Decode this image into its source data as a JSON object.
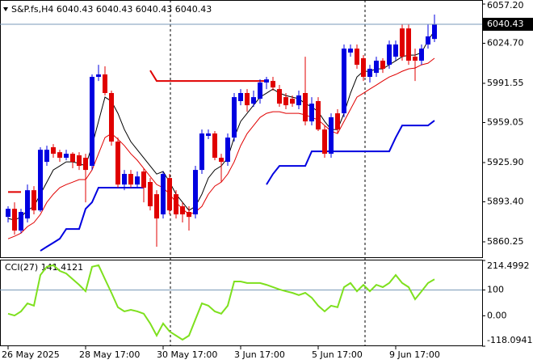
{
  "chart_data": [
    {
      "type": "candlestick",
      "title": "S&P.fs,H4  6040.43 6040.43 6040.43 6040.43",
      "categories": [
        "26 May 2025",
        null,
        null,
        null,
        null,
        null,
        null,
        null,
        null,
        null,
        null,
        null,
        "28 May 17:00",
        null,
        null,
        null,
        null,
        null,
        null,
        null,
        null,
        null,
        null,
        null,
        "30 May 17:00",
        null,
        null,
        null,
        null,
        null,
        null,
        null,
        null,
        null,
        null,
        null,
        "3 Jun 17:00",
        null,
        null,
        null,
        null,
        null,
        null,
        null,
        null,
        null,
        null,
        null,
        "5 Jun 17:00",
        null,
        null,
        null,
        null,
        null,
        null,
        null,
        null,
        null,
        null,
        null,
        "9 Jun 17:00",
        null,
        null,
        null,
        null,
        null,
        null
      ],
      "open": [
        5880.9,
        5887.6,
        5869.6,
        5879.6,
        5903.0,
        5886.3,
        5926.5,
        5938.6,
        5934.5,
        5929.9,
        5933.2,
        5931.9,
        5929.9,
        5923.2,
        5996.9,
        5998.9,
        5983.5,
        5943.3,
        5907.7,
        5916.5,
        5907.7,
        5918.5,
        5909.8,
        5899.7,
        5883.0,
        5913.1,
        5899.7,
        5889.7,
        5885.0,
        5883.0,
        5919.8,
        5948.0,
        5950.0,
        5929.9,
        5926.5,
        5946.6,
        5976.8,
        5983.5,
        5974.7,
        5978.8,
        5992.2,
        5993.5,
        5986.8,
        5980.1,
        5978.8,
        5973.4,
        5983.5,
        5960.0,
        5976.8,
        5953.3,
        5933.2,
        5966.7,
        5966.7,
        6017.0,
        6020.3,
        6012.3,
        5996.9,
        6000.2,
        6010.3,
        6006.9,
        6013.6,
        6037.0,
        6037.0,
        6013.6,
        6010.3,
        6023.7,
        6028.3
      ],
      "high": [
        5889.7,
        5893.0,
        5887.6,
        5907.7,
        5906.4,
        5938.6,
        5939.9,
        5941.2,
        5936.5,
        5936.5,
        5934.5,
        5934.5,
        5933.2,
        5998.9,
        6006.9,
        6005.6,
        5985.5,
        5946.6,
        5919.8,
        5919.8,
        5918.5,
        5921.2,
        5913.1,
        5903.0,
        5918.5,
        5916.5,
        5903.0,
        5893.0,
        5889.7,
        5923.2,
        5953.3,
        5953.3,
        5952.0,
        5933.2,
        5950.0,
        5983.5,
        5986.8,
        5986.8,
        5985.5,
        5994.8,
        5996.9,
        5996.9,
        5990.2,
        5983.5,
        5981.5,
        5985.5,
        6013.6,
        5980.1,
        5980.1,
        5956.7,
        5966.7,
        5970.1,
        6023.7,
        6023.7,
        6023.7,
        6015.0,
        6006.9,
        6013.6,
        6012.3,
        6027.0,
        6027.0,
        6040.4,
        6040.4,
        6020.3,
        6023.7,
        6040.4,
        6048.5
      ],
      "low": [
        5876.3,
        5866.2,
        5867.5,
        5876.3,
        5883.0,
        5885.0,
        5923.2,
        5929.9,
        5926.5,
        5927.8,
        5921.2,
        5919.8,
        5893.0,
        5919.8,
        5993.5,
        5981.5,
        5939.9,
        5905.1,
        5903.0,
        5905.1,
        5905.1,
        5893.0,
        5886.3,
        5856.2,
        5879.6,
        5883.0,
        5879.6,
        5876.3,
        5869.6,
        5879.6,
        5916.5,
        5945.3,
        5927.8,
        5909.8,
        5923.2,
        5943.3,
        5973.4,
        5968.0,
        5972.1,
        5974.7,
        5986.8,
        5985.5,
        5972.1,
        5970.1,
        5972.1,
        5970.1,
        5956.7,
        5956.7,
        5952.0,
        5929.9,
        5929.9,
        5950.0,
        5963.4,
        6013.6,
        6003.6,
        5993.5,
        5992.2,
        5996.9,
        6000.2,
        6003.6,
        6010.3,
        6010.3,
        6006.9,
        5993.5,
        6006.9,
        6020.3,
        6025.7
      ],
      "close": [
        5887.6,
        5869.6,
        5885.0,
        5903.0,
        5886.3,
        5936.5,
        5936.5,
        5933.2,
        5929.9,
        5933.2,
        5926.5,
        5923.2,
        5919.8,
        5996.9,
        5998.9,
        5983.5,
        5943.3,
        5907.7,
        5916.5,
        5907.7,
        5914.4,
        5905.1,
        5889.7,
        5879.6,
        5916.5,
        5886.3,
        5883.0,
        5883.0,
        5880.9,
        5919.8,
        5950.0,
        5950.0,
        5929.9,
        5926.5,
        5946.6,
        5980.1,
        5983.5,
        5973.4,
        5980.1,
        5992.2,
        5994.8,
        5988.1,
        5974.7,
        5973.4,
        5974.7,
        5981.5,
        5960.0,
        5974.7,
        5953.3,
        5933.2,
        5963.4,
        5953.3,
        6020.3,
        6020.3,
        6006.9,
        5996.9,
        6003.6,
        6010.3,
        6003.6,
        6023.7,
        6023.7,
        6013.6,
        6010.3,
        6010.3,
        6020.3,
        6030.4,
        6040.43
      ],
      "up_color": "#0000e0",
      "down_color": "#e00000",
      "series": [
        {
          "color": "#000000",
          "values": [
            5879.6,
            5878.3,
            5880.9,
            5886.3,
            5889.6,
            5899.7,
            5909.7,
            5919.8,
            5923.1,
            5926.5,
            5926.5,
            5925.2,
            5923.1,
            5939.9,
            5960.0,
            5980.1,
            5976.7,
            5966.7,
            5953.3,
            5943.2,
            5936.5,
            5929.8,
            5923.1,
            5916.4,
            5918.5,
            5909.7,
            5899.7,
            5893.0,
            5886.3,
            5889.6,
            5899.7,
            5913.1,
            5919.8,
            5923.1,
            5929.8,
            5946.6,
            5960.0,
            5966.7,
            5973.4,
            5980.1,
            5983.4,
            5986.8,
            5983.4,
            5981.4,
            5980.1,
            5978.8,
            5974.7,
            5972.1,
            5968.0,
            5960.0,
            5953.3,
            5953.3,
            5966.7,
            5983.4,
            5996.8,
            6001.5,
            6001.5,
            6003.5,
            6003.5,
            6006.9,
            6010.2,
            6013.6,
            6014.9,
            6014.9,
            6016.9,
            6027.0,
            6035.0
          ]
        },
        {
          "color": "#e00000",
          "values": [
            5862.8,
            5864.9,
            5867.5,
            5872.9,
            5876.2,
            5882.9,
            5893.0,
            5899.7,
            5905.1,
            5907.7,
            5909.7,
            5911.8,
            5911.8,
            5919.8,
            5933.2,
            5946.6,
            5949.9,
            5945.3,
            5939.9,
            5933.2,
            5927.8,
            5921.1,
            5914.4,
            5907.7,
            5905.1,
            5899.7,
            5893.0,
            5887.6,
            5882.9,
            5885.0,
            5889.6,
            5899.7,
            5906.4,
            5909.7,
            5916.4,
            5926.5,
            5939.9,
            5949.9,
            5956.6,
            5963.3,
            5966.7,
            5968.0,
            5968.0,
            5966.7,
            5966.7,
            5966.7,
            5965.4,
            5963.3,
            5961.3,
            5956.6,
            5952.0,
            5949.9,
            5960.0,
            5970.0,
            5980.1,
            5983.4,
            5986.8,
            5990.1,
            5993.5,
            5996.8,
            5998.9,
            6001.5,
            6003.5,
            6004.2,
            6006.9,
            6008.2,
            6012.3
          ]
        },
        {
          "color": "#e00000",
          "width": 2,
          "values": [
            5901.5,
            5901.5,
            5901.5,
            null,
            null,
            null,
            null,
            null,
            null,
            null,
            null,
            null,
            null,
            null,
            null,
            null,
            null,
            null,
            null,
            null,
            null,
            null,
            6002.2,
            5993.5,
            5993.5,
            5993.5,
            5993.5,
            5993.5,
            5993.5,
            5993.5,
            5993.5,
            5993.5,
            5993.5,
            5993.5,
            5993.5,
            5993.5,
            5993.5,
            5993.5,
            5993.5,
            5993.5,
            5993.5,
            null,
            null,
            null,
            null,
            null,
            null,
            null,
            null,
            null,
            null,
            null,
            null,
            null,
            null,
            null,
            null,
            null,
            null,
            null,
            null,
            null,
            null,
            null,
            null,
            null,
            null
          ]
        },
        {
          "color": "#0000e0",
          "width": 2,
          "values": [
            null,
            null,
            null,
            null,
            null,
            5852.8,
            5856.2,
            5859.5,
            5862.8,
            5870.9,
            5870.9,
            5870.9,
            5887.6,
            5893.0,
            5905.1,
            5905.1,
            5905.1,
            5905.1,
            5905.1,
            5905.1,
            5905.1,
            5905.1,
            null,
            null,
            null,
            null,
            null,
            null,
            null,
            null,
            null,
            null,
            null,
            null,
            null,
            null,
            null,
            null,
            null,
            null,
            5907.7,
            5916.4,
            5923.1,
            5923.1,
            5923.1,
            5923.1,
            5923.1,
            5935.2,
            5935.2,
            5935.2,
            5935.2,
            5935.2,
            5935.2,
            5935.2,
            5935.2,
            5935.2,
            5935.2,
            5935.2,
            5935.2,
            5935.2,
            5946.6,
            5956.6,
            5956.6,
            5956.6,
            5956.6,
            5956.6,
            5960.7
          ]
        }
      ],
      "last_price": 6040.43,
      "ylim": [
        5847.5,
        6060.55
      ],
      "yticks": [
        {
          "value": 6057.2,
          "label": "6057.20"
        },
        {
          "value": 6024.7,
          "label": "6024.70"
        },
        5991.55,
        5959.05,
        {
          "value": 5925.9,
          "label": "5925.90"
        },
        {
          "value": 5893.4,
          "label": "5893.40"
        },
        5860.25
      ]
    },
    {
      "type": "line",
      "title": "CCI(27) 141.4121",
      "color": "#7ee01e",
      "values": [
        8,
        1,
        17,
        48,
        39,
        158,
        190,
        196,
        174,
        164,
        142,
        120,
        95,
        190,
        196,
        142,
        89,
        33,
        17,
        23,
        17,
        8,
        -30,
        -77,
        -30,
        -61,
        -77,
        -93,
        -77,
        -14,
        48,
        39,
        17,
        8,
        39,
        133,
        133,
        127,
        127,
        127,
        120,
        111,
        102,
        95,
        89,
        80,
        89,
        70,
        39,
        17,
        39,
        33,
        111,
        127,
        95,
        120,
        95,
        120,
        111,
        127,
        158,
        127,
        111,
        64,
        95,
        127,
        141.4121
      ],
      "levels": [
        100
      ],
      "ylim": [
        -118.0941,
        214.4992
      ],
      "yticks": [
        214.4992,
        100,
        {
          "value": 0,
          "label": "0.00"
        },
        -118.0941
      ]
    }
  ]
}
